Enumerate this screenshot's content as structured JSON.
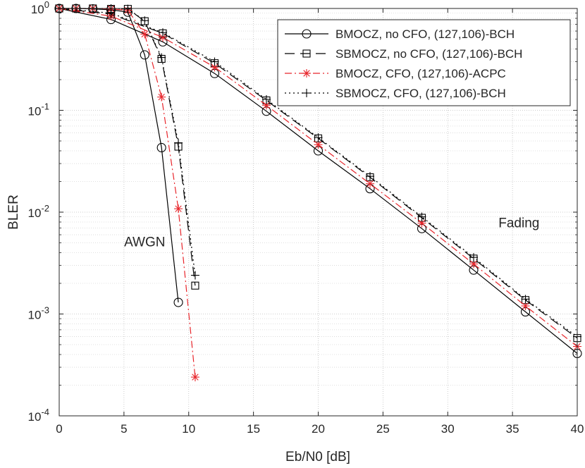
{
  "chart_data": {
    "type": "line",
    "xlabel": "Eb/N0 [dB]",
    "ylabel": "BLER",
    "xlim": [
      0,
      40
    ],
    "ylim_log10": [
      -4,
      0
    ],
    "yscale": "log",
    "grid": true,
    "x_ticks": [
      {
        "value": 0,
        "label": "0"
      },
      {
        "value": 5,
        "label": "5"
      },
      {
        "value": 10,
        "label": "10"
      },
      {
        "value": 15,
        "label": "15"
      },
      {
        "value": 20,
        "label": "20"
      },
      {
        "value": 25,
        "label": "25"
      },
      {
        "value": 30,
        "label": "30"
      },
      {
        "value": 35,
        "label": "35"
      },
      {
        "value": 40,
        "label": "40"
      }
    ],
    "y_ticks": [
      {
        "exp": 0,
        "base": "10",
        "sup": "0"
      },
      {
        "exp": -1,
        "base": "10",
        "sup": "-1"
      },
      {
        "exp": -2,
        "base": "10",
        "sup": "-2"
      },
      {
        "exp": -3,
        "base": "10",
        "sup": "-3"
      },
      {
        "exp": -4,
        "base": "10",
        "sup": "-4"
      }
    ],
    "annotations": [
      {
        "text": "AWGN",
        "x": 6.6,
        "y": 0.0046
      },
      {
        "text": "Fading",
        "x": 35.5,
        "y": 0.0071
      }
    ],
    "legend_position": "top-right",
    "series": [
      {
        "name": "BMOCZ, no CFO, (127,106)-BCH",
        "color": "#000000",
        "dash": "",
        "marker": "circle",
        "group": "AWGN",
        "x": [
          0,
          1.3,
          2.6,
          4.0,
          5.3,
          6.6,
          7.9,
          9.2
        ],
        "y": [
          1.0,
          1.0,
          0.99,
          0.97,
          0.92,
          0.35,
          0.043,
          0.0013
        ]
      },
      {
        "name": "BMOCZ, no CFO, (127,106)-BCH",
        "color": "#000000",
        "dash": "",
        "marker": "circle",
        "group": "Fading",
        "x": [
          0,
          4,
          8,
          12,
          16,
          20,
          24,
          28,
          32,
          36,
          40
        ],
        "y": [
          1.0,
          0.78,
          0.47,
          0.23,
          0.098,
          0.04,
          0.017,
          0.0069,
          0.0027,
          0.00105,
          0.00041
        ]
      },
      {
        "name": "SBMOCZ, no CFO, (127,106)-BCH",
        "color": "#000000",
        "dash": "14 8",
        "marker": "square",
        "group": "AWGN",
        "x": [
          0,
          1.3,
          2.6,
          4.0,
          5.3,
          6.6,
          7.9,
          9.2,
          10.5
        ],
        "y": [
          1.0,
          1.0,
          1.0,
          0.99,
          0.99,
          0.75,
          0.32,
          0.044,
          0.0019
        ]
      },
      {
        "name": "SBMOCZ, no CFO, (127,106)-BCH",
        "color": "#000000",
        "dash": "14 8",
        "marker": "square",
        "group": "Fading",
        "x": [
          0,
          4,
          8,
          12,
          16,
          20,
          24,
          28,
          32,
          36,
          40
        ],
        "y": [
          1.0,
          0.88,
          0.57,
          0.29,
          0.125,
          0.053,
          0.022,
          0.0088,
          0.0035,
          0.00137,
          0.00058
        ]
      },
      {
        "name": "BMOCZ, CFO, (127,106)-ACPC",
        "color": "#e8242a",
        "dash": "10 4 2 4",
        "marker": "star",
        "group": "AWGN",
        "x": [
          0,
          1.3,
          2.6,
          4.0,
          5.3,
          6.6,
          7.9,
          9.2,
          10.5
        ],
        "y": [
          1.0,
          1.0,
          1.0,
          0.99,
          0.96,
          0.56,
          0.135,
          0.0108,
          0.00024
        ]
      },
      {
        "name": "BMOCZ, CFO, (127,106)-ACPC",
        "color": "#e8242a",
        "dash": "10 4 2 4",
        "marker": "star",
        "group": "Fading",
        "x": [
          0,
          4,
          8,
          12,
          16,
          20,
          24,
          28,
          32,
          36,
          40
        ],
        "y": [
          1.0,
          0.84,
          0.52,
          0.265,
          0.112,
          0.046,
          0.019,
          0.0078,
          0.0031,
          0.0012,
          0.00048
        ]
      },
      {
        "name": "SBMOCZ, CFO, (127,106)-BCH",
        "color": "#000000",
        "dash": "2 4",
        "marker": "plus",
        "group": "AWGN",
        "x": [
          0,
          1.3,
          2.6,
          4.0,
          5.3,
          6.6,
          7.9,
          9.2,
          10.5
        ],
        "y": [
          1.0,
          1.0,
          1.0,
          1.0,
          0.99,
          0.76,
          0.33,
          0.048,
          0.0024
        ]
      },
      {
        "name": "SBMOCZ, CFO, (127,106)-BCH",
        "color": "#000000",
        "dash": "2 4",
        "marker": "plus",
        "group": "Fading",
        "x": [
          0,
          4,
          8,
          12,
          16,
          20,
          24,
          28,
          32,
          36,
          40
        ],
        "y": [
          1.0,
          0.9,
          0.58,
          0.3,
          0.128,
          0.054,
          0.0225,
          0.009,
          0.0036,
          0.0014,
          0.0006
        ]
      }
    ],
    "legend": [
      {
        "label": "BMOCZ, no CFO, (127,106)-BCH",
        "color": "#000000",
        "dash": "",
        "marker": "circle"
      },
      {
        "label": "SBMOCZ, no CFO, (127,106)-BCH",
        "color": "#000000",
        "dash": "14 8",
        "marker": "square"
      },
      {
        "label": "BMOCZ, CFO, (127,106)-ACPC",
        "color": "#e8242a",
        "dash": "10 4 2 4",
        "marker": "star"
      },
      {
        "label": "SBMOCZ, CFO, (127,106)-BCH",
        "color": "#000000",
        "dash": "2 4",
        "marker": "plus"
      }
    ]
  }
}
